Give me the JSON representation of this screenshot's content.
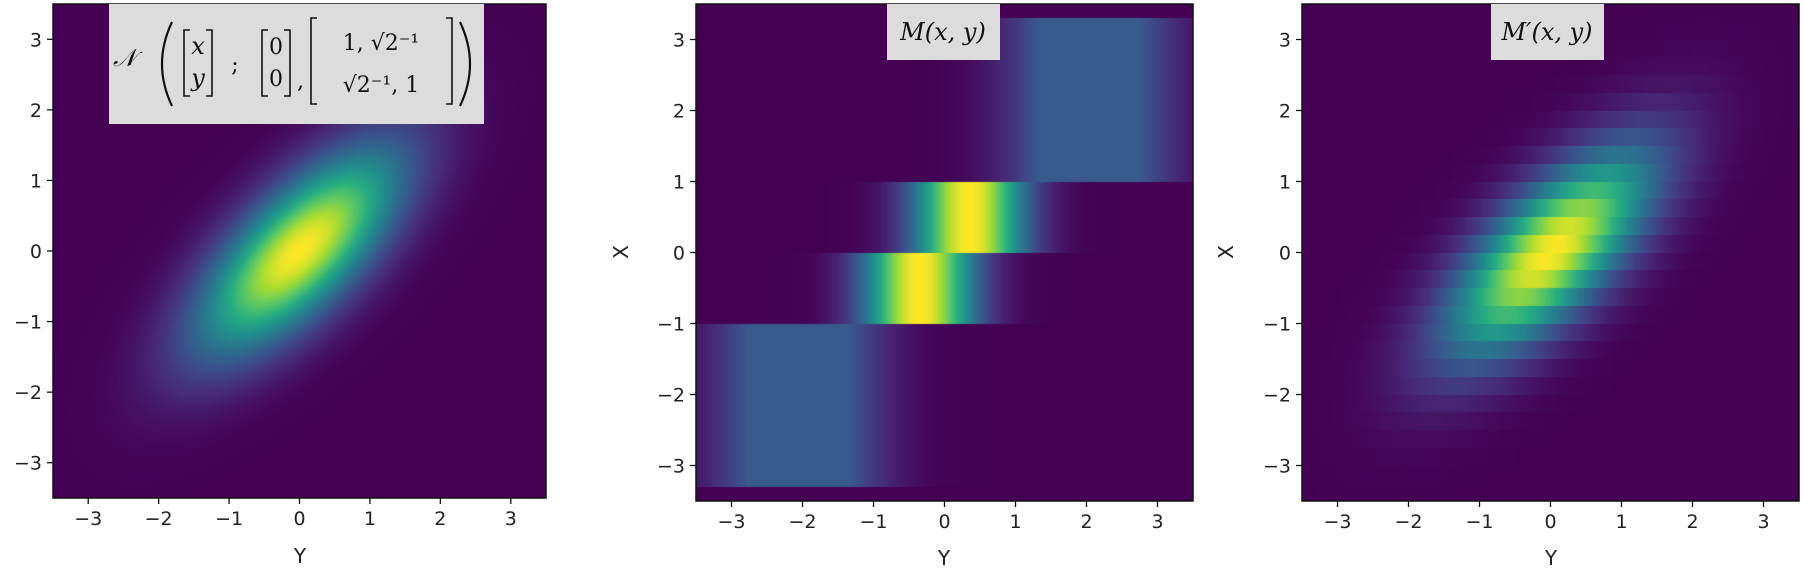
{
  "chart_data": [
    {
      "type": "heatmap",
      "title_parts": {
        "lead": "𝒩",
        "vec_top": "x",
        "vec_bottom": "y",
        "sep": ";",
        "mean_top": "0",
        "mean_bottom": "0",
        "cov_top": "1, √2⁻¹",
        "cov_bottom": "√2⁻¹, 1"
      },
      "xlabel": "Y",
      "ylabel": "",
      "xlim": [
        -3.5,
        3.5
      ],
      "ylim": [
        -3.5,
        3.5
      ],
      "xticks": [
        "−3",
        "−2",
        "−1",
        "0",
        "1",
        "2",
        "3"
      ],
      "yticks": [
        "3",
        "2",
        "1",
        "0",
        "−1",
        "−2",
        "−3"
      ],
      "colormap": "viridis",
      "distribution": {
        "mean": [
          0,
          0
        ],
        "cov": [
          [
            1,
            0.7071
          ],
          [
            0.7071,
            1
          ]
        ]
      }
    },
    {
      "type": "heatmap",
      "title": "M(x, y)",
      "xlabel": "Y",
      "ylabel": "X",
      "xlim": [
        -3.5,
        3.5
      ],
      "ylim": [
        -3.5,
        3.5
      ],
      "xticks": [
        "−3",
        "−2",
        "−1",
        "0",
        "1",
        "2",
        "3"
      ],
      "yticks": [
        "3",
        "2",
        "1",
        "0",
        "−1",
        "−2",
        "−3"
      ],
      "colormap": "viridis",
      "row_bands_x": [
        [
          1,
          3.3
        ],
        [
          0,
          1
        ],
        [
          -1,
          0
        ],
        [
          -3.3,
          -1
        ]
      ],
      "band_centers_y": [
        2.05,
        0.35,
        -0.35,
        -2.05
      ]
    },
    {
      "type": "heatmap",
      "title": "M′(x, y)",
      "xlabel": "Y",
      "ylabel": "X",
      "xlim": [
        -3.5,
        3.5
      ],
      "ylim": [
        -3.5,
        3.5
      ],
      "xticks": [
        "−3",
        "−2",
        "−1",
        "0",
        "1",
        "2",
        "3"
      ],
      "yticks": [
        "3",
        "2",
        "1",
        "0",
        "−1",
        "−2",
        "−3"
      ],
      "colormap": "viridis",
      "band_height_x": 0.25
    }
  ]
}
